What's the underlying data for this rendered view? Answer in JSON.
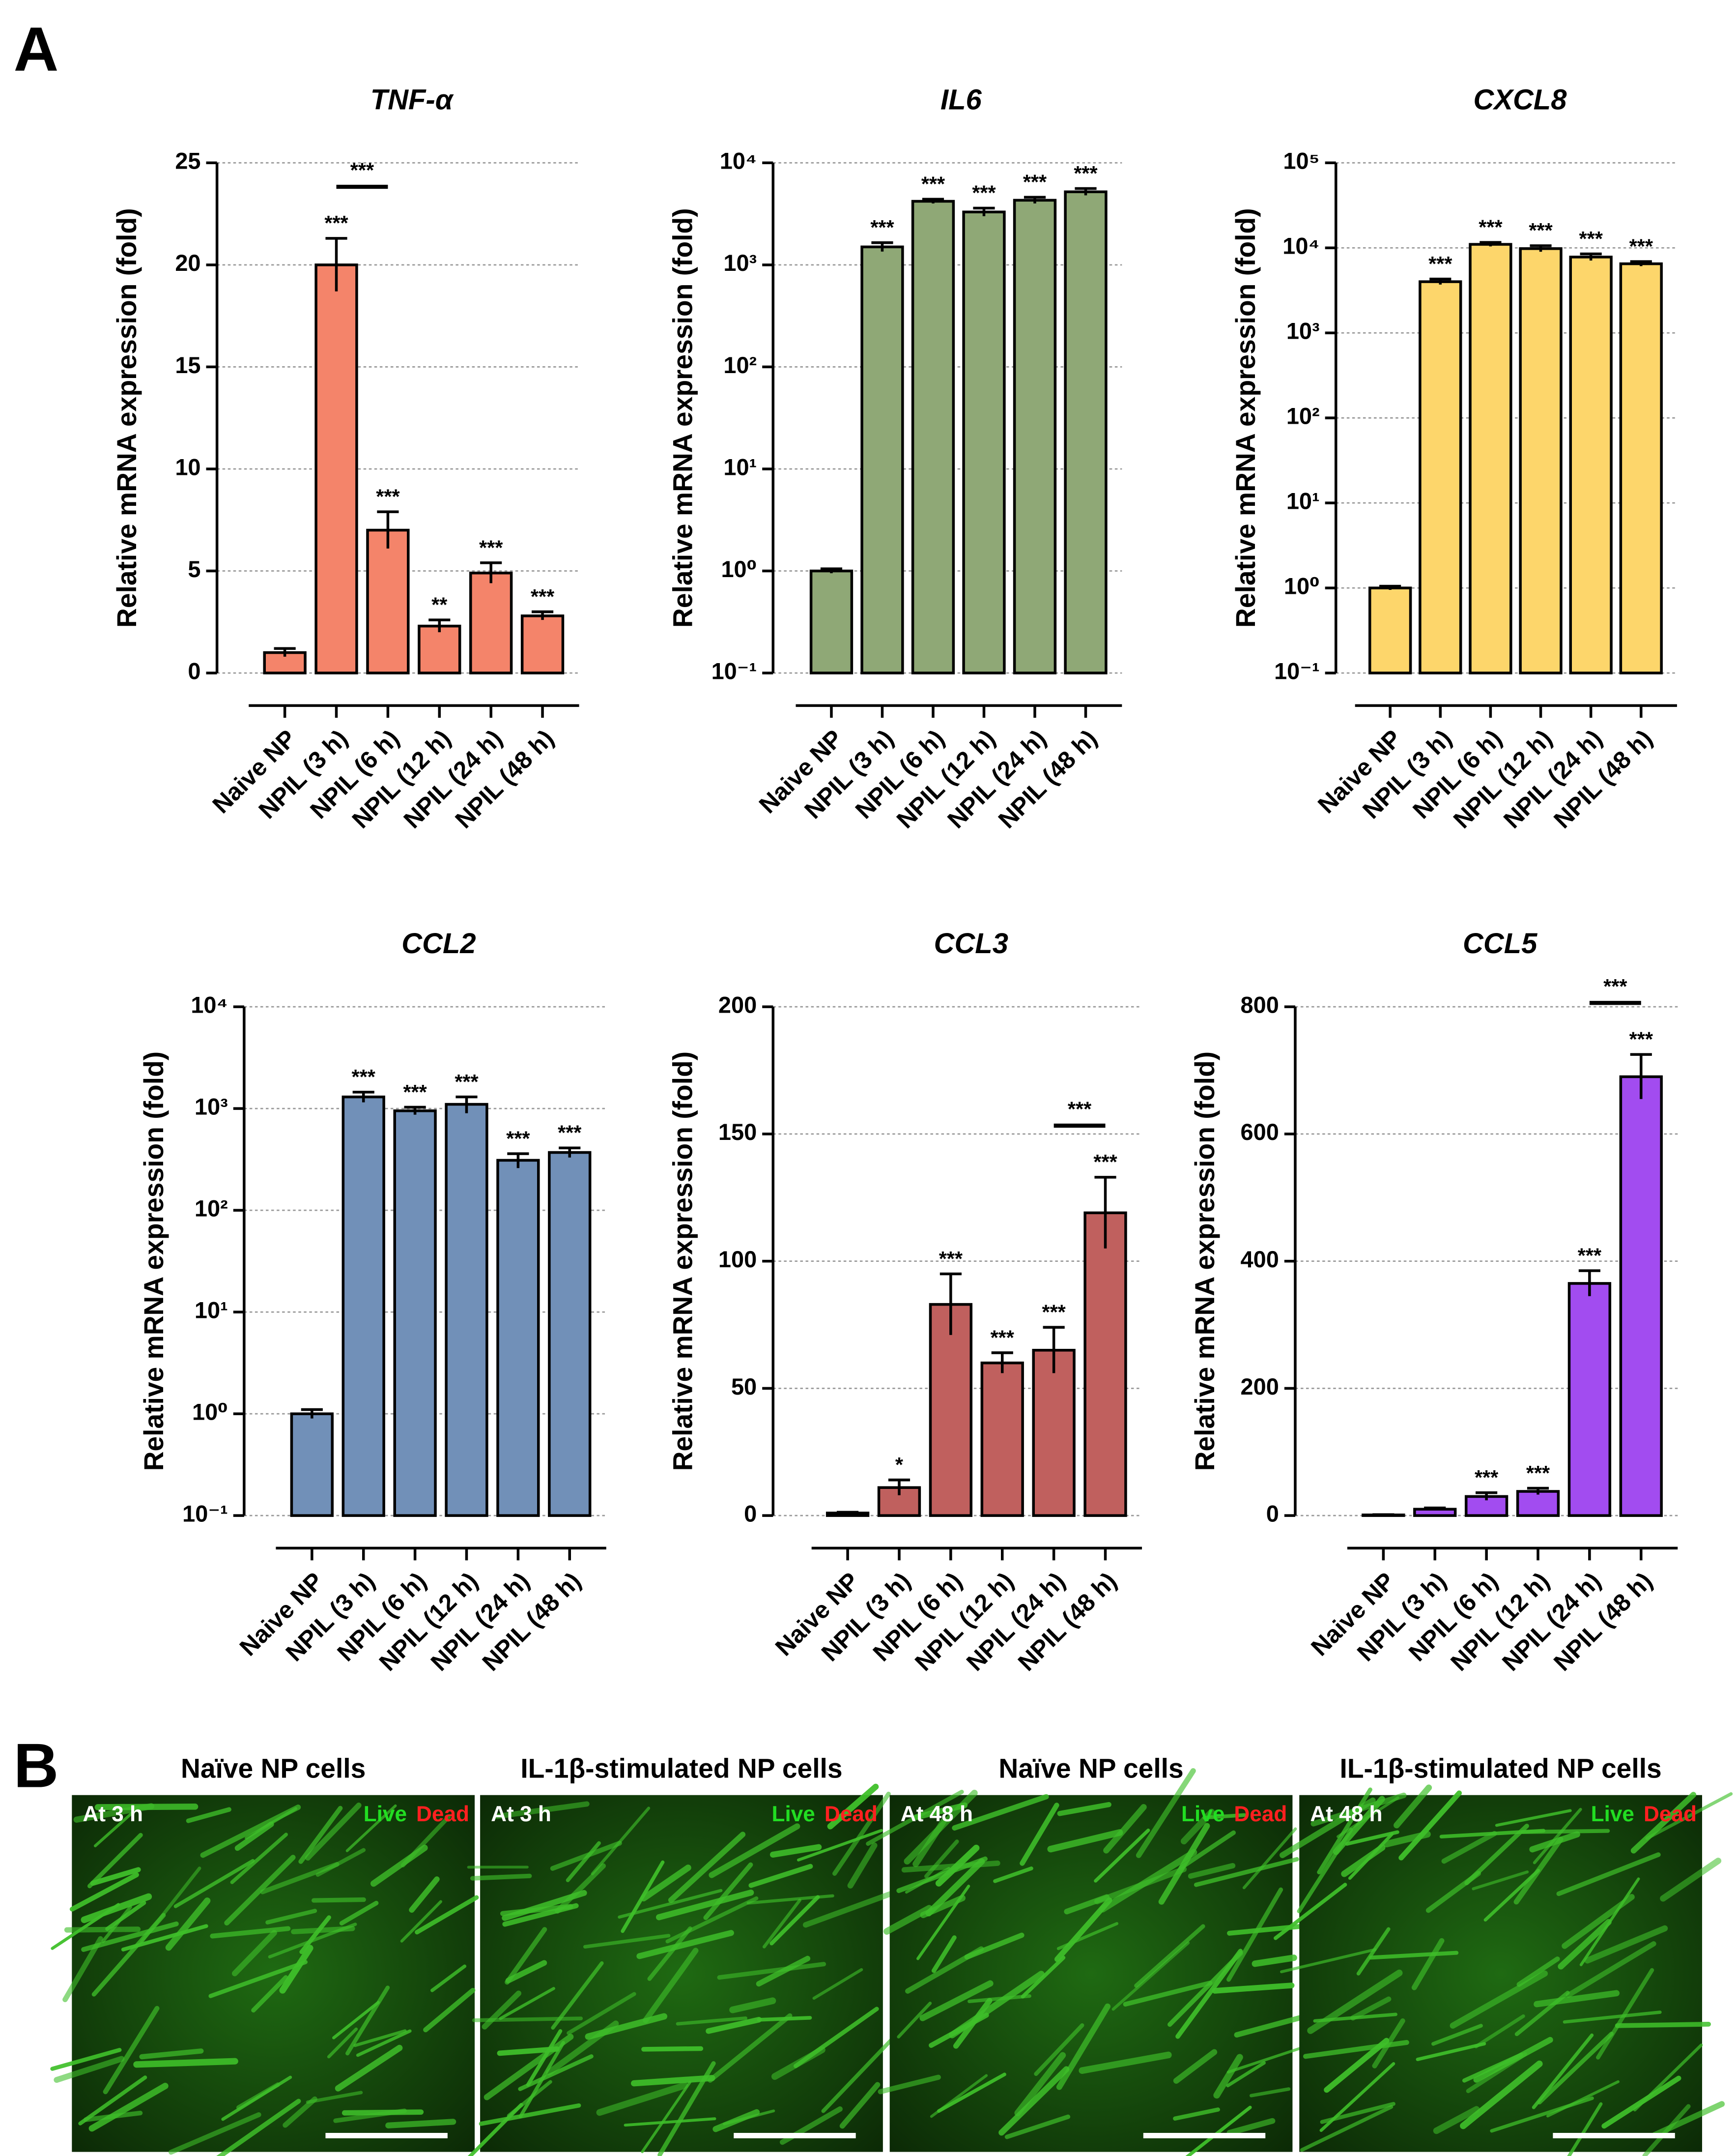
{
  "panel_labels": [
    "A",
    "B"
  ],
  "chart_data": [
    {
      "type": "bar",
      "title": "TNF-α",
      "ylabel": "Relative mRNA expression (fold)",
      "categories": [
        "Naive NP",
        "NPIL (3 h)",
        "NPIL (6 h)",
        "NPIL (12 h)",
        "NPIL (24 h)",
        "NPIL (48 h)"
      ],
      "values": [
        1,
        20,
        7,
        2.3,
        4.9,
        2.8
      ],
      "errors": [
        0.2,
        1.3,
        0.9,
        0.3,
        0.5,
        0.2
      ],
      "annotations": [
        null,
        "***",
        "***",
        "**",
        "***",
        "***"
      ],
      "bracket": {
        "from": 1,
        "to": 2,
        "label": "***"
      },
      "color": "#f4846a",
      "log": false,
      "ylim": [
        0,
        25
      ],
      "yticks": [
        0,
        5,
        10,
        15,
        20,
        25
      ],
      "grid": true
    },
    {
      "type": "bar",
      "title": "IL6",
      "ylabel": "Relative mRNA expression (fold)",
      "categories": [
        "Naive NP",
        "NPIL (3 h)",
        "NPIL (6 h)",
        "NPIL (12 h)",
        "NPIL (24 h)",
        "NPIL (48 h)"
      ],
      "values": [
        1,
        1500,
        4200,
        3300,
        4300,
        5200
      ],
      "errors": [
        0.05,
        150,
        200,
        300,
        300,
        400
      ],
      "annotations": [
        null,
        "***",
        "***",
        "***",
        "***",
        "***"
      ],
      "color": "#8fa876",
      "log": true,
      "ylim": [
        0.1,
        10000
      ],
      "yticks": [
        {
          "value": 0.1,
          "label": "10⁻¹"
        },
        {
          "value": 1,
          "label": "10⁰"
        },
        {
          "value": 10,
          "label": "10¹"
        },
        {
          "value": 100,
          "label": "10²"
        },
        {
          "value": 1000,
          "label": "10³"
        },
        {
          "value": 10000,
          "label": "10⁴"
        }
      ],
      "grid": true
    },
    {
      "type": "bar",
      "title": "CXCL8",
      "ylabel": "Relative mRNA expression (fold)",
      "categories": [
        "Naive NP",
        "NPIL (3 h)",
        "NPIL (6 h)",
        "NPIL (12 h)",
        "NPIL (24 h)",
        "NPIL (48 h)"
      ],
      "values": [
        1,
        4000,
        11000,
        9800,
        7800,
        6500
      ],
      "errors": [
        0.05,
        300,
        600,
        800,
        700,
        400
      ],
      "annotations": [
        null,
        "***",
        "***",
        "***",
        "***",
        "***"
      ],
      "color": "#fdd66b",
      "log": true,
      "ylim": [
        0.1,
        100000
      ],
      "yticks": [
        {
          "value": 0.1,
          "label": "10⁻¹"
        },
        {
          "value": 1,
          "label": "10⁰"
        },
        {
          "value": 10,
          "label": "10¹"
        },
        {
          "value": 100,
          "label": "10²"
        },
        {
          "value": 1000,
          "label": "10³"
        },
        {
          "value": 10000,
          "label": "10⁴"
        },
        {
          "value": 100000,
          "label": "10⁵"
        }
      ],
      "grid": true
    },
    {
      "type": "bar",
      "title": "CCL2",
      "ylabel": "Relative mRNA expression (fold)",
      "categories": [
        "Naive NP",
        "NPIL (3 h)",
        "NPIL (6 h)",
        "NPIL (12 h)",
        "NPIL (24 h)",
        "NPIL (48 h)"
      ],
      "values": [
        1,
        1300,
        950,
        1100,
        310,
        370
      ],
      "errors": [
        0.1,
        150,
        80,
        200,
        50,
        40
      ],
      "annotations": [
        null,
        "***",
        "***",
        "***",
        "***",
        "***"
      ],
      "color": "#7190b8",
      "log": true,
      "ylim": [
        0.1,
        10000
      ],
      "yticks": [
        {
          "value": 0.1,
          "label": "10⁻¹"
        },
        {
          "value": 1,
          "label": "10⁰"
        },
        {
          "value": 10,
          "label": "10¹"
        },
        {
          "value": 100,
          "label": "10²"
        },
        {
          "value": 1000,
          "label": "10³"
        },
        {
          "value": 10000,
          "label": "10⁴"
        }
      ],
      "grid": true
    },
    {
      "type": "bar",
      "title": "CCL3",
      "ylabel": "Relative mRNA expression (fold)",
      "categories": [
        "Naive NP",
        "NPIL (3 h)",
        "NPIL (6 h)",
        "NPIL (12 h)",
        "NPIL (24 h)",
        "NPIL (48 h)"
      ],
      "values": [
        1,
        11,
        83,
        60,
        65,
        119
      ],
      "errors": [
        0.3,
        3,
        12,
        4,
        9,
        14
      ],
      "annotations": [
        null,
        "*",
        "***",
        "***",
        "***",
        "***"
      ],
      "bracket": {
        "from": 4,
        "to": 5,
        "label": "***"
      },
      "color": "#c0605e",
      "log": false,
      "ylim": [
        0,
        200
      ],
      "yticks": [
        0,
        50,
        100,
        150,
        200
      ],
      "grid": true
    },
    {
      "type": "bar",
      "title": "CCL5",
      "ylabel": "Relative mRNA expression (fold)",
      "categories": [
        "Naive NP",
        "NPIL (3 h)",
        "NPIL (6 h)",
        "NPIL (12 h)",
        "NPIL (24 h)",
        "NPIL (48 h)"
      ],
      "values": [
        1,
        10,
        30,
        38,
        365,
        690
      ],
      "errors": [
        0.5,
        2,
        6,
        5,
        20,
        35
      ],
      "annotations": [
        null,
        null,
        "***",
        "***",
        "***",
        "***"
      ],
      "bracket": {
        "from": 4,
        "to": 5,
        "label": "***"
      },
      "color": "#a24cf0",
      "log": false,
      "ylim": [
        0,
        800
      ],
      "yticks": [
        0,
        200,
        400,
        600,
        800
      ],
      "grid": true
    }
  ],
  "images": [
    {
      "title": "Naïve NP cells",
      "time": "At 3 h",
      "live": "Live",
      "dead": "Dead"
    },
    {
      "title": "IL-1β-stimulated NP cells",
      "time": "At 3 h",
      "live": "Live",
      "dead": "Dead"
    },
    {
      "title": "Naïve NP cells",
      "time": "At 48 h",
      "live": "Live",
      "dead": "Dead"
    },
    {
      "title": "IL-1β-stimulated NP cells",
      "time": "At 48 h",
      "live": "Live",
      "dead": "Dead"
    }
  ]
}
